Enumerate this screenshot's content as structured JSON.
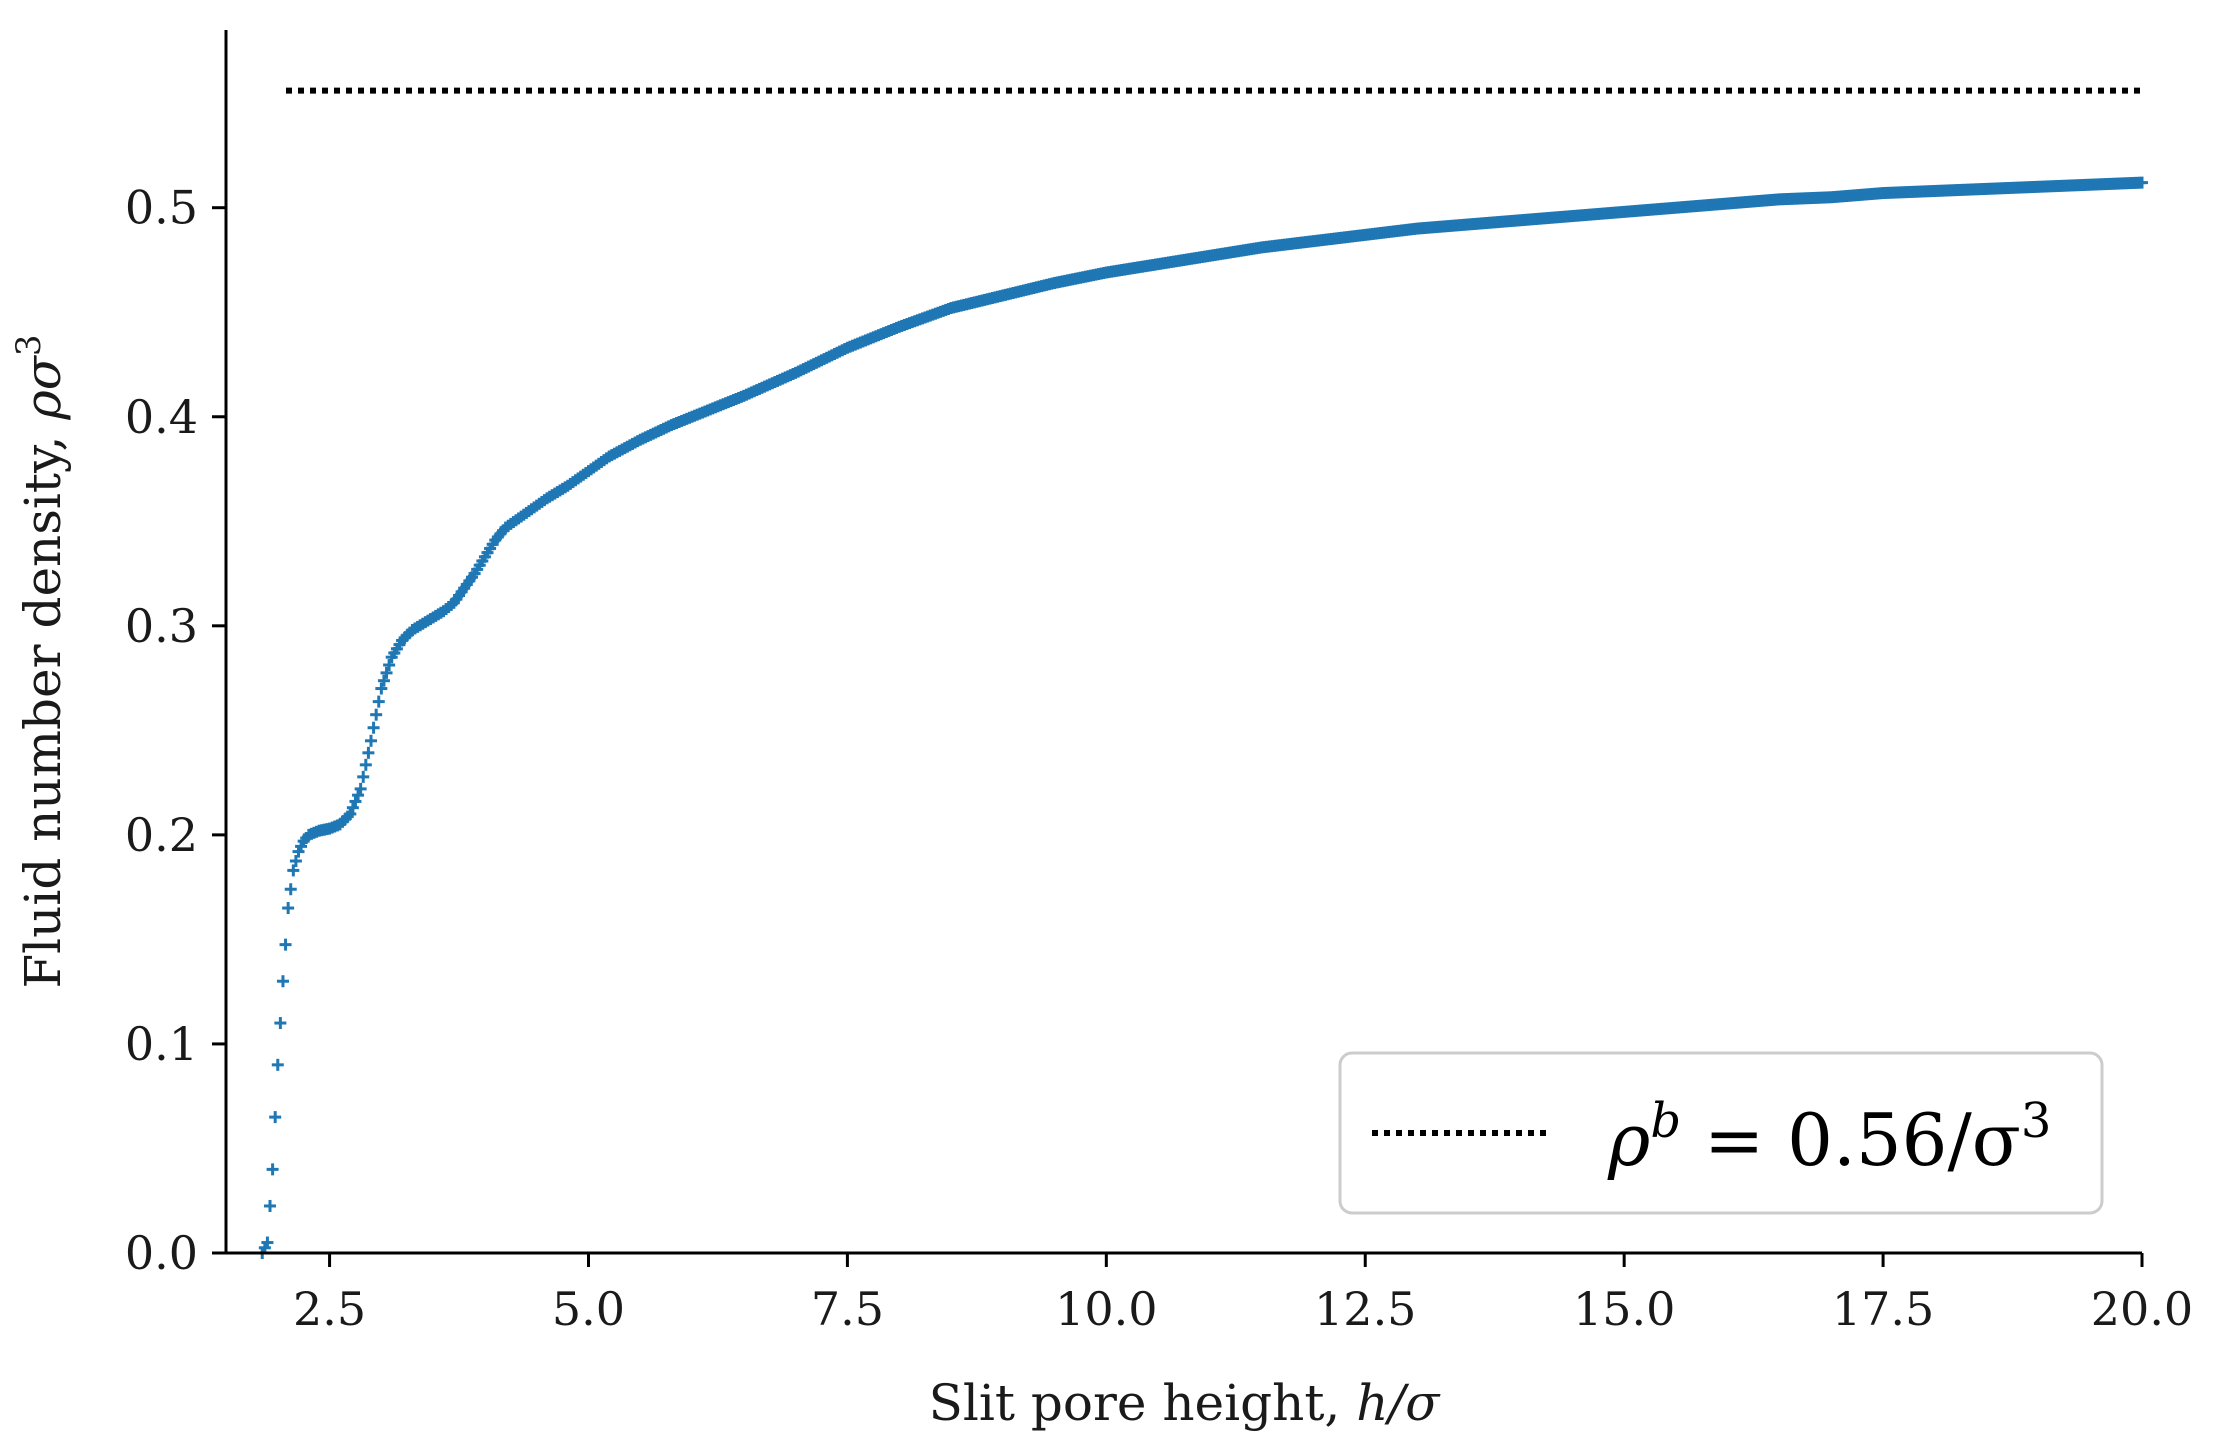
{
  "chart_data": {
    "type": "scatter",
    "title": "",
    "xlabel": "Slit pore height, h/σ",
    "ylabel": "Fluid number density, ρσ³",
    "xlim": [
      1.5,
      20.0
    ],
    "ylim": [
      0.0,
      0.585
    ],
    "xticks": [
      "2.5",
      "5.0",
      "7.5",
      "10.0",
      "12.5",
      "15.0",
      "17.5",
      "20.0"
    ],
    "yticks": [
      "0.0",
      "0.1",
      "0.2",
      "0.3",
      "0.4",
      "0.5"
    ],
    "grid": false,
    "legend_position": "lower-right",
    "series": [
      {
        "marker": "plus",
        "color": "#1f77b4",
        "x": [
          1.85,
          1.9,
          1.95,
          2.0,
          2.05,
          2.1,
          2.15,
          2.2,
          2.25,
          2.3,
          2.4,
          2.5,
          2.6,
          2.7,
          2.8,
          2.9,
          3.0,
          3.1,
          3.2,
          3.3,
          3.4,
          3.5,
          3.6,
          3.7,
          3.8,
          3.9,
          4.0,
          4.1,
          4.2,
          4.4,
          4.6,
          4.8,
          5.0,
          5.2,
          5.5,
          5.8,
          6.0,
          6.5,
          7.0,
          7.5,
          8.0,
          8.5,
          9.0,
          9.5,
          10.0,
          10.5,
          11.0,
          11.5,
          12.0,
          12.5,
          13.0,
          13.5,
          14.0,
          14.5,
          15.0,
          15.5,
          16.0,
          16.5,
          17.0,
          17.5,
          18.0,
          18.5,
          19.0,
          19.5,
          20.0
        ],
        "y": [
          0.0,
          0.005,
          0.04,
          0.09,
          0.13,
          0.165,
          0.183,
          0.192,
          0.197,
          0.2,
          0.202,
          0.203,
          0.205,
          0.21,
          0.222,
          0.245,
          0.27,
          0.285,
          0.293,
          0.298,
          0.301,
          0.304,
          0.307,
          0.311,
          0.318,
          0.325,
          0.333,
          0.341,
          0.347,
          0.354,
          0.361,
          0.367,
          0.374,
          0.381,
          0.389,
          0.396,
          0.4,
          0.41,
          0.421,
          0.433,
          0.443,
          0.452,
          0.458,
          0.464,
          0.469,
          0.473,
          0.477,
          0.481,
          0.484,
          0.487,
          0.49,
          0.492,
          0.494,
          0.496,
          0.498,
          0.5,
          0.502,
          0.504,
          0.505,
          0.507,
          0.508,
          0.509,
          0.51,
          0.511,
          0.512
        ]
      },
      {
        "name": "ρ^b = 0.56/σ³",
        "type": "hline",
        "style": "dotted",
        "color": "#000000",
        "y": 0.556
      }
    ],
    "legend": {
      "line_label": "ρ",
      "line_sup": "b",
      "line_rest": " = 0.56/σ",
      "line_sup2": "3"
    },
    "xlabel_parts": {
      "text": "Slit pore height, ",
      "math": "h/σ"
    },
    "ylabel_parts": {
      "text": "Fluid number density, ",
      "math": "ρσ",
      "sup": "3"
    }
  }
}
